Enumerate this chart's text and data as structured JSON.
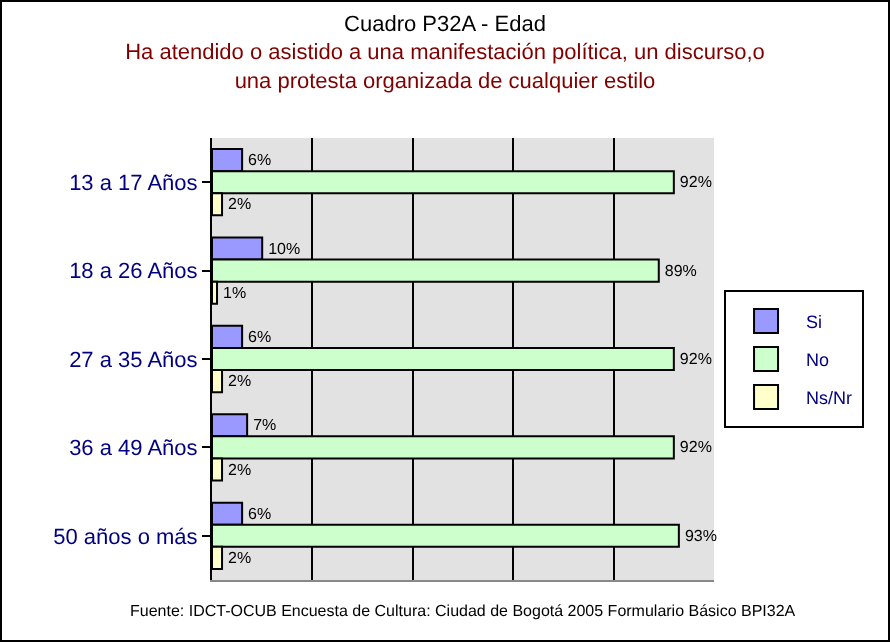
{
  "chart_data": {
    "type": "bar",
    "orientation": "horizontal",
    "title": "Cuadro P32A - Edad",
    "subtitle": "Ha atendido o asistido a una manifestación política, un discurso,o una protesta organizada de cualquier estilo",
    "categories": [
      "13 a 17 Años",
      "18 a 26 Años",
      "27 a 35 Años",
      "36 a 49 Años",
      "50 años o más"
    ],
    "series": [
      {
        "name": "Si",
        "color": "#9999ff",
        "values": [
          6,
          10,
          6,
          7,
          6
        ],
        "value_labels": [
          "6%",
          "10%",
          "6%",
          "7%",
          "6%"
        ]
      },
      {
        "name": "No",
        "color": "#ccffcc",
        "values": [
          92,
          89,
          92,
          92,
          93
        ],
        "value_labels": [
          "92%",
          "89%",
          "92%",
          "92%",
          "93%"
        ]
      },
      {
        "name": "Ns/Nr",
        "color": "#ffffcc",
        "values": [
          2,
          1,
          2,
          2,
          2
        ],
        "value_labels": [
          "2%",
          "1%",
          "2%",
          "2%",
          "2%"
        ]
      }
    ],
    "xlim": [
      0,
      100
    ],
    "xticks": [
      {
        "value": 0,
        "label": null
      },
      {
        "value": 20,
        "label": null
      },
      {
        "value": 40,
        "label": null
      },
      {
        "value": 60,
        "label": null
      },
      {
        "value": 80,
        "label": null
      },
      {
        "value": 100,
        "label": null
      }
    ],
    "grid": "x",
    "legend": "right",
    "tick_labels": "y",
    "annotations": [
      "Fuente: IDCT-OCUB Encuesta de Cultura: Ciudad de Bogotá 2005 Formulario Básico BPI32A"
    ]
  }
}
